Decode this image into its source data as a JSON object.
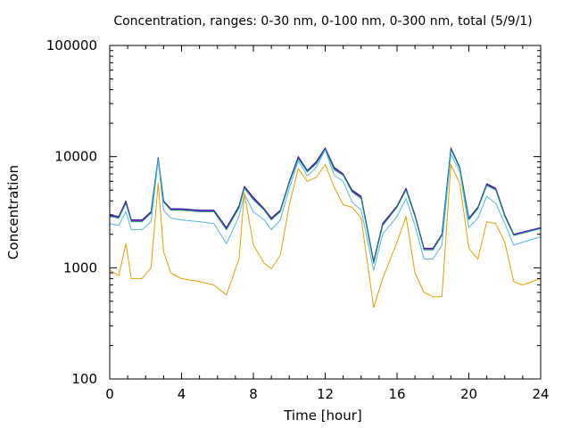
{
  "chart_data": {
    "type": "line",
    "title": "Concentration, ranges: 0-30 nm, 0-100 nm, 0-300 nm, total (5/9/1)",
    "xlabel": "Time [hour]",
    "ylabel": "Concentration",
    "xlim": [
      0,
      24
    ],
    "ylim": [
      100,
      100000
    ],
    "yscale": "log",
    "grid": false,
    "xticks": [
      {
        "value": 0,
        "label": "0"
      },
      {
        "value": 4,
        "label": "4"
      },
      {
        "value": 8,
        "label": "8"
      },
      {
        "value": 12,
        "label": "12"
      },
      {
        "value": 16,
        "label": "16"
      },
      {
        "value": 20,
        "label": "20"
      },
      {
        "value": 24,
        "label": "24"
      }
    ],
    "yticks": [
      {
        "value": 100,
        "label": "100"
      },
      {
        "value": 1000,
        "label": "1000"
      },
      {
        "value": 10000,
        "label": "10000"
      },
      {
        "value": 100000,
        "label": "100000"
      }
    ],
    "x": [
      0,
      0.5,
      0.9,
      1.2,
      1.8,
      2.3,
      2.7,
      3.0,
      3.4,
      4.0,
      5.0,
      5.8,
      6.5,
      7.2,
      7.5,
      8.0,
      8.6,
      9.0,
      9.5,
      10.0,
      10.5,
      11.0,
      11.5,
      12.0,
      12.5,
      13.0,
      13.5,
      14.0,
      14.7,
      15.2,
      16.0,
      16.5,
      17.0,
      17.5,
      18.0,
      18.5,
      19.0,
      19.5,
      20.0,
      20.5,
      21.0,
      21.5,
      22.0,
      22.5,
      23.0,
      24.0
    ],
    "series": [
      {
        "color": "#0a1e8c",
        "values": [
          3000,
          2900,
          4000,
          2700,
          2700,
          3200,
          9800,
          4000,
          3400,
          3400,
          3300,
          3300,
          2300,
          3600,
          5400,
          4300,
          3400,
          2800,
          3300,
          6000,
          10000,
          7500,
          9000,
          12000,
          8000,
          7000,
          5000,
          4400,
          1150,
          2500,
          3600,
          5200,
          3000,
          1500,
          1500,
          2000,
          12000,
          8000,
          2800,
          3500,
          5700,
          5200,
          3000,
          2000,
          2100,
          2300
        ]
      },
      {
        "color": "#9400d3",
        "values": [
          2950,
          2850,
          3900,
          2650,
          2650,
          3150,
          9700,
          3950,
          3350,
          3350,
          3250,
          3250,
          2250,
          3500,
          5300,
          4200,
          3350,
          2750,
          3250,
          5900,
          9800,
          7400,
          8800,
          11800,
          7800,
          6900,
          4900,
          4300,
          1130,
          2450,
          3550,
          5100,
          2950,
          1480,
          1480,
          1980,
          11800,
          7900,
          2750,
          3450,
          5600,
          5100,
          2950,
          1980,
          2080,
          2280
        ]
      },
      {
        "color": "#009e73",
        "values": [
          2900,
          2800,
          3800,
          2600,
          2600,
          3100,
          9600,
          3900,
          3300,
          3300,
          3200,
          3200,
          2200,
          3450,
          5200,
          4100,
          3300,
          2700,
          3200,
          5800,
          9600,
          7300,
          8600,
          11600,
          7600,
          6800,
          4800,
          4200,
          1100,
          2400,
          3500,
          5000,
          2900,
          1450,
          1450,
          1950,
          11600,
          7800,
          2700,
          3400,
          5500,
          5000,
          2900,
          1950,
          2050,
          2250
        ]
      },
      {
        "color": "#56b4e9",
        "values": [
          2500,
          2400,
          3200,
          2200,
          2200,
          2600,
          9200,
          3300,
          2800,
          2700,
          2600,
          2500,
          1650,
          2900,
          4600,
          3200,
          2700,
          2200,
          2700,
          5200,
          9200,
          6700,
          8000,
          11500,
          6800,
          6000,
          3900,
          3300,
          950,
          2000,
          2900,
          4200,
          2400,
          1200,
          1200,
          1600,
          10500,
          7300,
          2300,
          2800,
          4400,
          3800,
          2500,
          1600,
          1700,
          1900
        ]
      },
      {
        "color": "#e69f00",
        "values": [
          950,
          850,
          1650,
          800,
          800,
          1000,
          5800,
          1400,
          900,
          800,
          750,
          700,
          570,
          1200,
          4700,
          1600,
          1100,
          980,
          1300,
          3700,
          7800,
          6000,
          6500,
          8500,
          5300,
          3700,
          3500,
          2800,
          440,
          800,
          1700,
          2900,
          900,
          600,
          550,
          550,
          8500,
          5700,
          1500,
          1200,
          2600,
          2500,
          1700,
          750,
          700,
          800
        ]
      }
    ]
  }
}
